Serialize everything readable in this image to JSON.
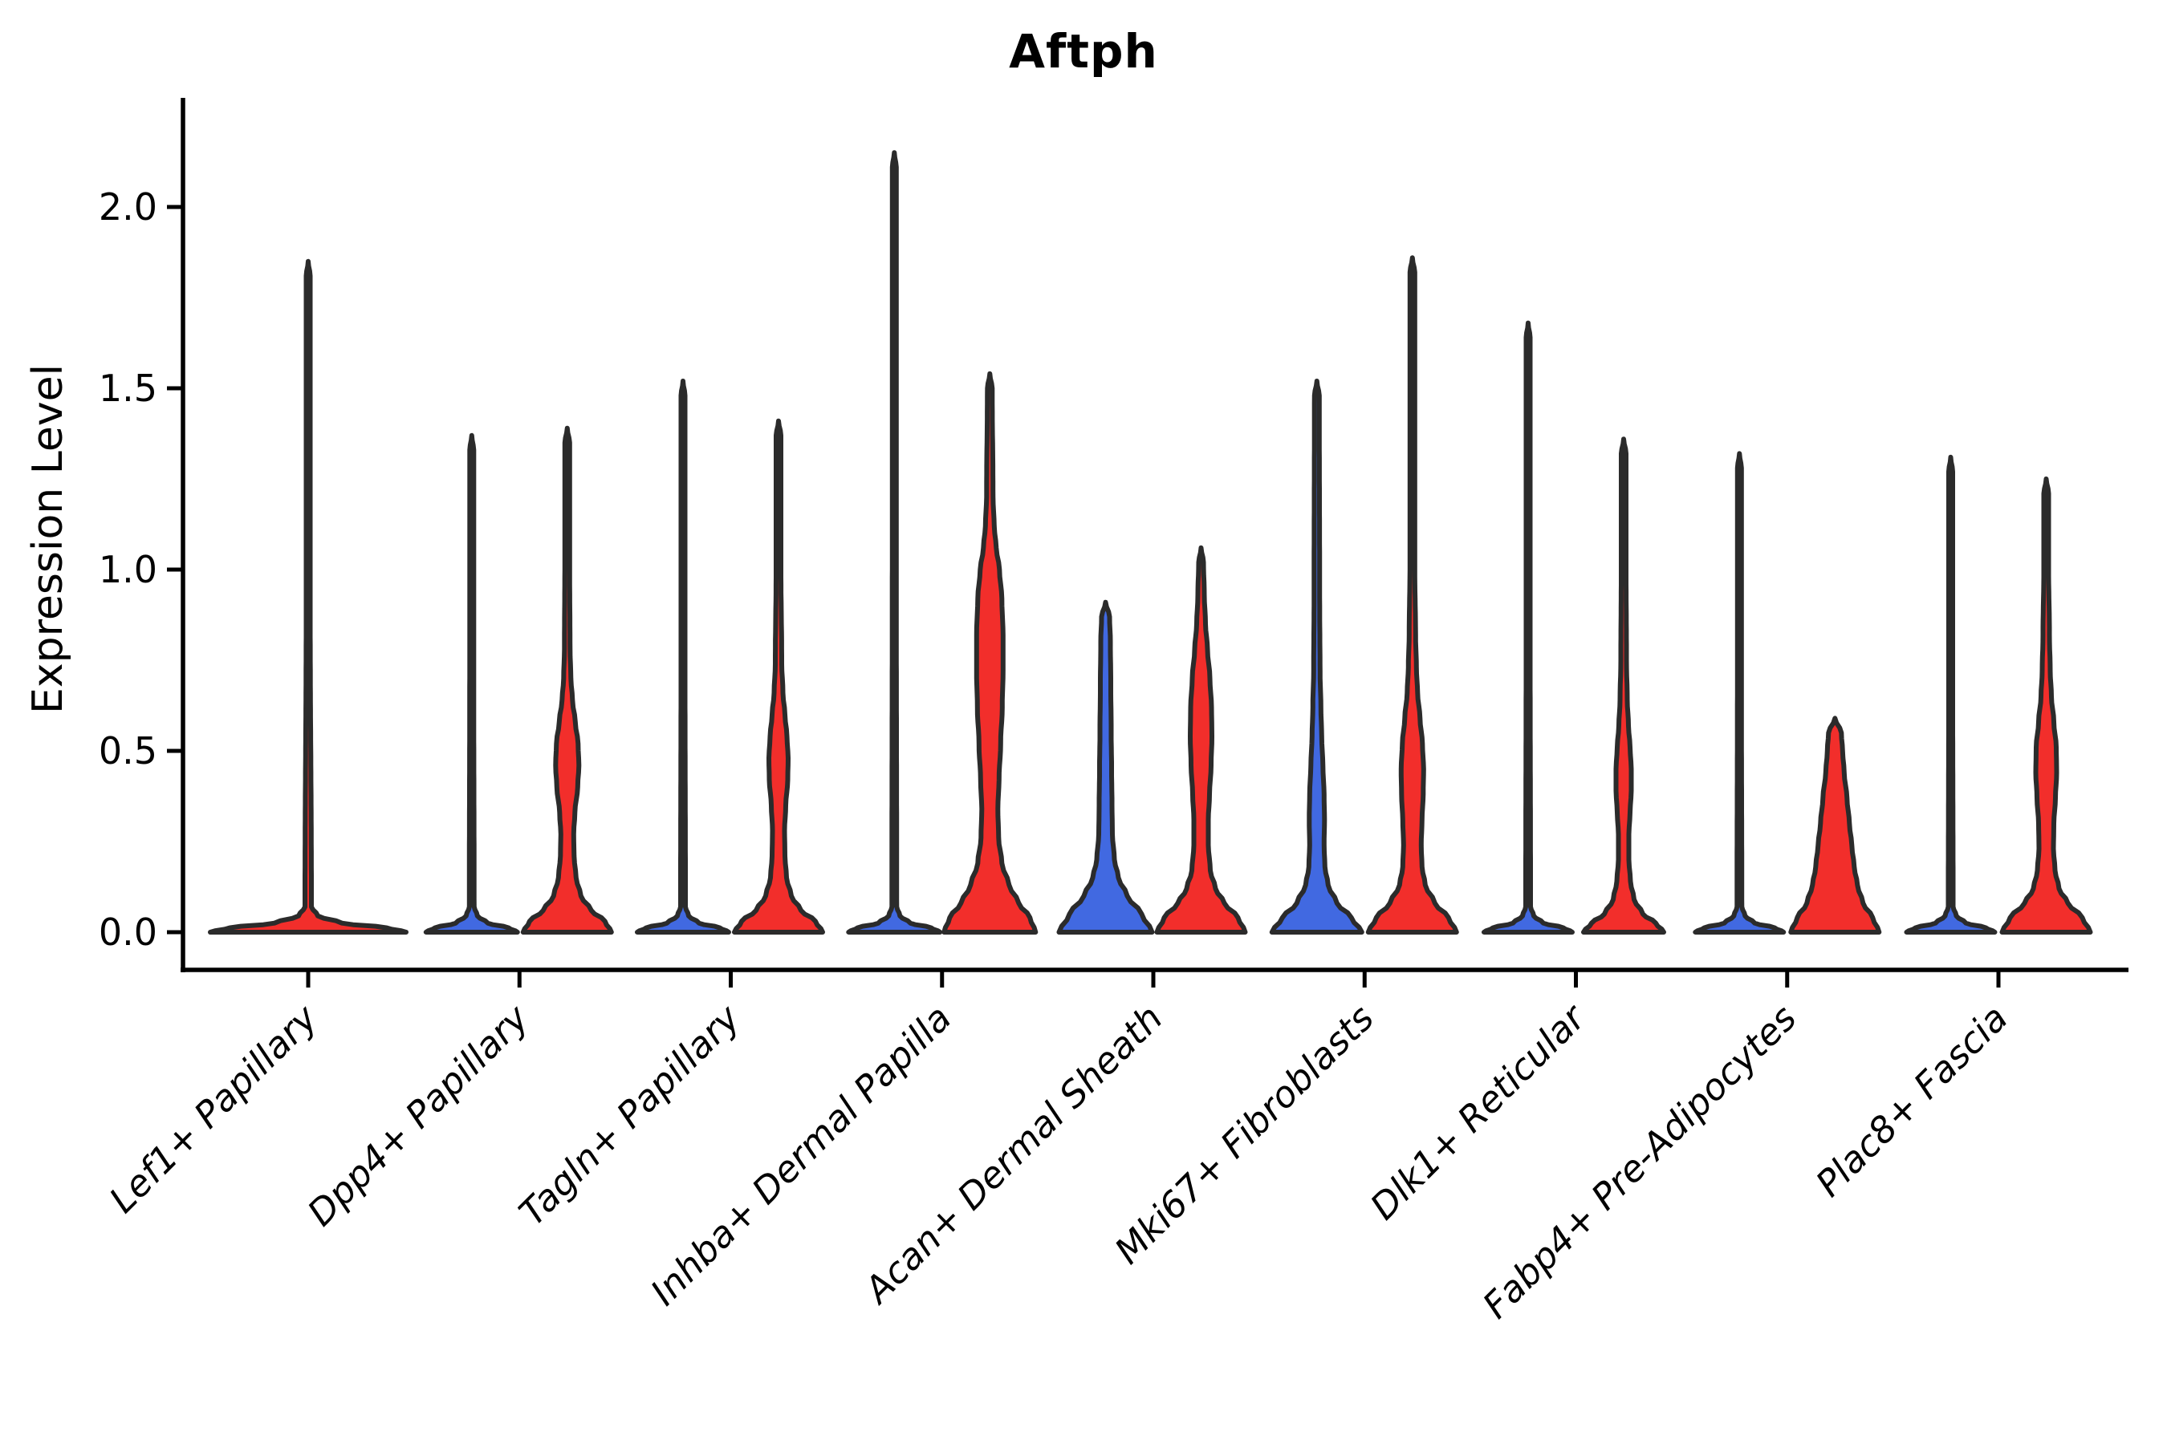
{
  "chart_data": {
    "type": "violin",
    "title": "Aftph",
    "ylabel": "Expression Level",
    "xlabel": "",
    "yticks": [
      0.0,
      0.5,
      1.0,
      1.5,
      2.0
    ],
    "ytick_labels": [
      "0.0",
      "0.5",
      "1.0",
      "1.5",
      "2.0"
    ],
    "ylim": [
      -0.1,
      2.3
    ],
    "grid": false,
    "legend": "none",
    "colors": {
      "red": "#F22E2B",
      "blue": "#4169E1",
      "outline": "#2B2B2B",
      "axis": "#000000"
    },
    "categories": [
      {
        "label": "Lef1+ Papillary",
        "violins": [
          {
            "side": "center",
            "color": "red",
            "max": 1.85,
            "profile": [
              [
                0,
                122
              ],
              [
                0.012,
                98
              ],
              [
                0.025,
                42
              ],
              [
                0.045,
                12
              ],
              [
                0.07,
                4
              ],
              [
                0.9,
                2.5
              ],
              [
                1.81,
                2.5
              ],
              [
                1.85,
                0
              ]
            ]
          }
        ]
      },
      {
        "label": "Dpp4+ Papillary",
        "violins": [
          {
            "side": "left",
            "color": "blue",
            "max": 1.37,
            "profile": [
              [
                0,
                57
              ],
              [
                0.012,
                46
              ],
              [
                0.025,
                20
              ],
              [
                0.045,
                7
              ],
              [
                0.07,
                3
              ],
              [
                0.7,
                2.5
              ],
              [
                1.33,
                2.5
              ],
              [
                1.37,
                0
              ]
            ]
          },
          {
            "side": "right",
            "color": "red",
            "max": 1.39,
            "profile": [
              [
                0,
                55
              ],
              [
                0.03,
                47
              ],
              [
                0.06,
                30
              ],
              [
                0.1,
                17
              ],
              [
                0.15,
                11
              ],
              [
                0.21,
                8.5
              ],
              [
                0.27,
                8
              ],
              [
                0.33,
                9.5
              ],
              [
                0.4,
                13
              ],
              [
                0.46,
                14.5
              ],
              [
                0.52,
                13.5
              ],
              [
                0.58,
                10
              ],
              [
                0.64,
                6.5
              ],
              [
                0.7,
                4.5
              ],
              [
                0.78,
                3.5
              ],
              [
                1.0,
                3
              ],
              [
                1.35,
                3
              ],
              [
                1.39,
                0
              ]
            ]
          }
        ]
      },
      {
        "label": "Tagln+ Papillary",
        "violins": [
          {
            "side": "left",
            "color": "blue",
            "max": 1.52,
            "profile": [
              [
                0,
                57
              ],
              [
                0.012,
                46
              ],
              [
                0.025,
                20
              ],
              [
                0.045,
                7
              ],
              [
                0.07,
                3
              ],
              [
                0.75,
                2.5
              ],
              [
                1.48,
                2.5
              ],
              [
                1.52,
                0
              ]
            ]
          },
          {
            "side": "right",
            "color": "red",
            "max": 1.41,
            "profile": [
              [
                0,
                55
              ],
              [
                0.03,
                46
              ],
              [
                0.06,
                28
              ],
              [
                0.1,
                16
              ],
              [
                0.15,
                10
              ],
              [
                0.21,
                8
              ],
              [
                0.28,
                7.5
              ],
              [
                0.35,
                9
              ],
              [
                0.42,
                11.5
              ],
              [
                0.48,
                12
              ],
              [
                0.54,
                10.5
              ],
              [
                0.6,
                8
              ],
              [
                0.66,
                5.5
              ],
              [
                0.74,
                4
              ],
              [
                1.0,
                3
              ],
              [
                1.37,
                3
              ],
              [
                1.41,
                0
              ]
            ]
          }
        ]
      },
      {
        "label": "Inhba+ Dermal Papilla",
        "violins": [
          {
            "side": "left",
            "color": "blue",
            "max": 2.15,
            "profile": [
              [
                0,
                57
              ],
              [
                0.012,
                46
              ],
              [
                0.025,
                20
              ],
              [
                0.045,
                7
              ],
              [
                0.07,
                3
              ],
              [
                1.0,
                2.5
              ],
              [
                2.11,
                2.5
              ],
              [
                2.15,
                0
              ]
            ]
          },
          {
            "side": "right",
            "color": "red",
            "max": 1.54,
            "profile": [
              [
                0,
                57
              ],
              [
                0.04,
                50
              ],
              [
                0.08,
                36
              ],
              [
                0.13,
                24
              ],
              [
                0.19,
                15
              ],
              [
                0.26,
                11
              ],
              [
                0.34,
                10
              ],
              [
                0.42,
                11.5
              ],
              [
                0.52,
                13.5
              ],
              [
                0.62,
                15.5
              ],
              [
                0.72,
                16.5
              ],
              [
                0.82,
                16.5
              ],
              [
                0.92,
                15
              ],
              [
                1.0,
                12
              ],
              [
                1.06,
                8
              ],
              [
                1.12,
                5.5
              ],
              [
                1.2,
                4
              ],
              [
                1.5,
                3
              ],
              [
                1.54,
                0
              ]
            ]
          }
        ]
      },
      {
        "label": "Acan+ Dermal Sheath",
        "violins": [
          {
            "side": "left",
            "color": "blue",
            "max": 0.91,
            "profile": [
              [
                0,
                58
              ],
              [
                0.05,
                45
              ],
              [
                0.1,
                27
              ],
              [
                0.15,
                16
              ],
              [
                0.2,
                11
              ],
              [
                0.27,
                8.5
              ],
              [
                0.35,
                8
              ],
              [
                0.45,
                7.5
              ],
              [
                0.55,
                7
              ],
              [
                0.68,
                6.5
              ],
              [
                0.8,
                6
              ],
              [
                0.87,
                5
              ],
              [
                0.91,
                0
              ]
            ]
          },
          {
            "side": "right",
            "color": "red",
            "max": 1.06,
            "profile": [
              [
                0,
                55
              ],
              [
                0.04,
                46
              ],
              [
                0.08,
                29
              ],
              [
                0.12,
                18
              ],
              [
                0.17,
                11.5
              ],
              [
                0.24,
                9
              ],
              [
                0.31,
                9
              ],
              [
                0.38,
                10.5
              ],
              [
                0.46,
                12.5
              ],
              [
                0.54,
                13.5
              ],
              [
                0.62,
                13
              ],
              [
                0.7,
                11
              ],
              [
                0.78,
                8
              ],
              [
                0.85,
                5.5
              ],
              [
                0.93,
                4
              ],
              [
                1.02,
                3
              ],
              [
                1.06,
                0
              ]
            ]
          }
        ]
      },
      {
        "label": "Mki67+ Fibroblasts",
        "violins": [
          {
            "side": "left",
            "color": "blue",
            "max": 1.52,
            "profile": [
              [
                0,
                56
              ],
              [
                0.04,
                43
              ],
              [
                0.08,
                25
              ],
              [
                0.13,
                14
              ],
              [
                0.18,
                10
              ],
              [
                0.24,
                9
              ],
              [
                0.31,
                9.5
              ],
              [
                0.38,
                9
              ],
              [
                0.46,
                7.5
              ],
              [
                0.54,
                6
              ],
              [
                0.62,
                5
              ],
              [
                0.72,
                4
              ],
              [
                0.9,
                3.5
              ],
              [
                1.48,
                3
              ],
              [
                1.52,
                0
              ]
            ]
          },
          {
            "side": "right",
            "color": "red",
            "max": 1.86,
            "profile": [
              [
                0,
                55
              ],
              [
                0.04,
                45
              ],
              [
                0.08,
                28
              ],
              [
                0.13,
                16
              ],
              [
                0.18,
                12
              ],
              [
                0.24,
                11
              ],
              [
                0.31,
                12
              ],
              [
                0.38,
                13.5
              ],
              [
                0.45,
                14
              ],
              [
                0.52,
                12.5
              ],
              [
                0.59,
                9.5
              ],
              [
                0.66,
                6.5
              ],
              [
                0.73,
                5
              ],
              [
                0.82,
                4
              ],
              [
                1.0,
                3
              ],
              [
                1.82,
                3
              ],
              [
                1.86,
                0
              ]
            ]
          }
        ]
      },
      {
        "label": "Dlk1+ Reticular",
        "violins": [
          {
            "side": "left",
            "color": "blue",
            "max": 1.68,
            "profile": [
              [
                0,
                55
              ],
              [
                0.012,
                44
              ],
              [
                0.025,
                19
              ],
              [
                0.045,
                7
              ],
              [
                0.07,
                3
              ],
              [
                0.8,
                2.5
              ],
              [
                1.64,
                2.5
              ],
              [
                1.68,
                0
              ]
            ]
          },
          {
            "side": "right",
            "color": "red",
            "max": 1.36,
            "profile": [
              [
                0,
                50
              ],
              [
                0.025,
                40
              ],
              [
                0.05,
                24
              ],
              [
                0.09,
                13
              ],
              [
                0.14,
                8.5
              ],
              [
                0.2,
                6.5
              ],
              [
                0.27,
                6.5
              ],
              [
                0.33,
                8
              ],
              [
                0.39,
                9.5
              ],
              [
                0.45,
                9.5
              ],
              [
                0.51,
                8
              ],
              [
                0.57,
                6
              ],
              [
                0.64,
                4.5
              ],
              [
                0.75,
                3.5
              ],
              [
                1.0,
                3
              ],
              [
                1.32,
                3
              ],
              [
                1.36,
                0
              ]
            ]
          }
        ]
      },
      {
        "label": "Fabp4+ Pre-Adipocytes",
        "violins": [
          {
            "side": "left",
            "color": "blue",
            "max": 1.32,
            "profile": [
              [
                0,
                55
              ],
              [
                0.012,
                44
              ],
              [
                0.025,
                19
              ],
              [
                0.045,
                7
              ],
              [
                0.07,
                3
              ],
              [
                0.65,
                2.5
              ],
              [
                1.28,
                2.5
              ],
              [
                1.32,
                0
              ]
            ]
          },
          {
            "side": "right",
            "color": "red",
            "max": 0.59,
            "profile": [
              [
                0,
                55
              ],
              [
                0.04,
                47
              ],
              [
                0.08,
                35
              ],
              [
                0.13,
                28
              ],
              [
                0.18,
                24
              ],
              [
                0.24,
                21
              ],
              [
                0.3,
                18
              ],
              [
                0.37,
                15
              ],
              [
                0.44,
                11.5
              ],
              [
                0.5,
                9.5
              ],
              [
                0.55,
                8
              ],
              [
                0.59,
                0
              ]
            ]
          }
        ]
      },
      {
        "label": "Plac8+ Fascia",
        "violins": [
          {
            "side": "left",
            "color": "blue",
            "max": 1.31,
            "profile": [
              [
                0,
                55
              ],
              [
                0.012,
                44
              ],
              [
                0.025,
                19
              ],
              [
                0.045,
                7
              ],
              [
                0.07,
                3
              ],
              [
                0.65,
                2.5
              ],
              [
                1.27,
                2.5
              ],
              [
                1.31,
                0
              ]
            ]
          },
          {
            "side": "right",
            "color": "red",
            "max": 1.25,
            "profile": [
              [
                0,
                55
              ],
              [
                0.04,
                45
              ],
              [
                0.08,
                27
              ],
              [
                0.12,
                16
              ],
              [
                0.17,
                11
              ],
              [
                0.23,
                9
              ],
              [
                0.3,
                9.5
              ],
              [
                0.37,
                11.5
              ],
              [
                0.44,
                13
              ],
              [
                0.51,
                12.5
              ],
              [
                0.58,
                9.5
              ],
              [
                0.65,
                6.5
              ],
              [
                0.72,
                5
              ],
              [
                0.82,
                4
              ],
              [
                1.0,
                3
              ],
              [
                1.21,
                3
              ],
              [
                1.25,
                0
              ]
            ]
          }
        ]
      }
    ]
  }
}
